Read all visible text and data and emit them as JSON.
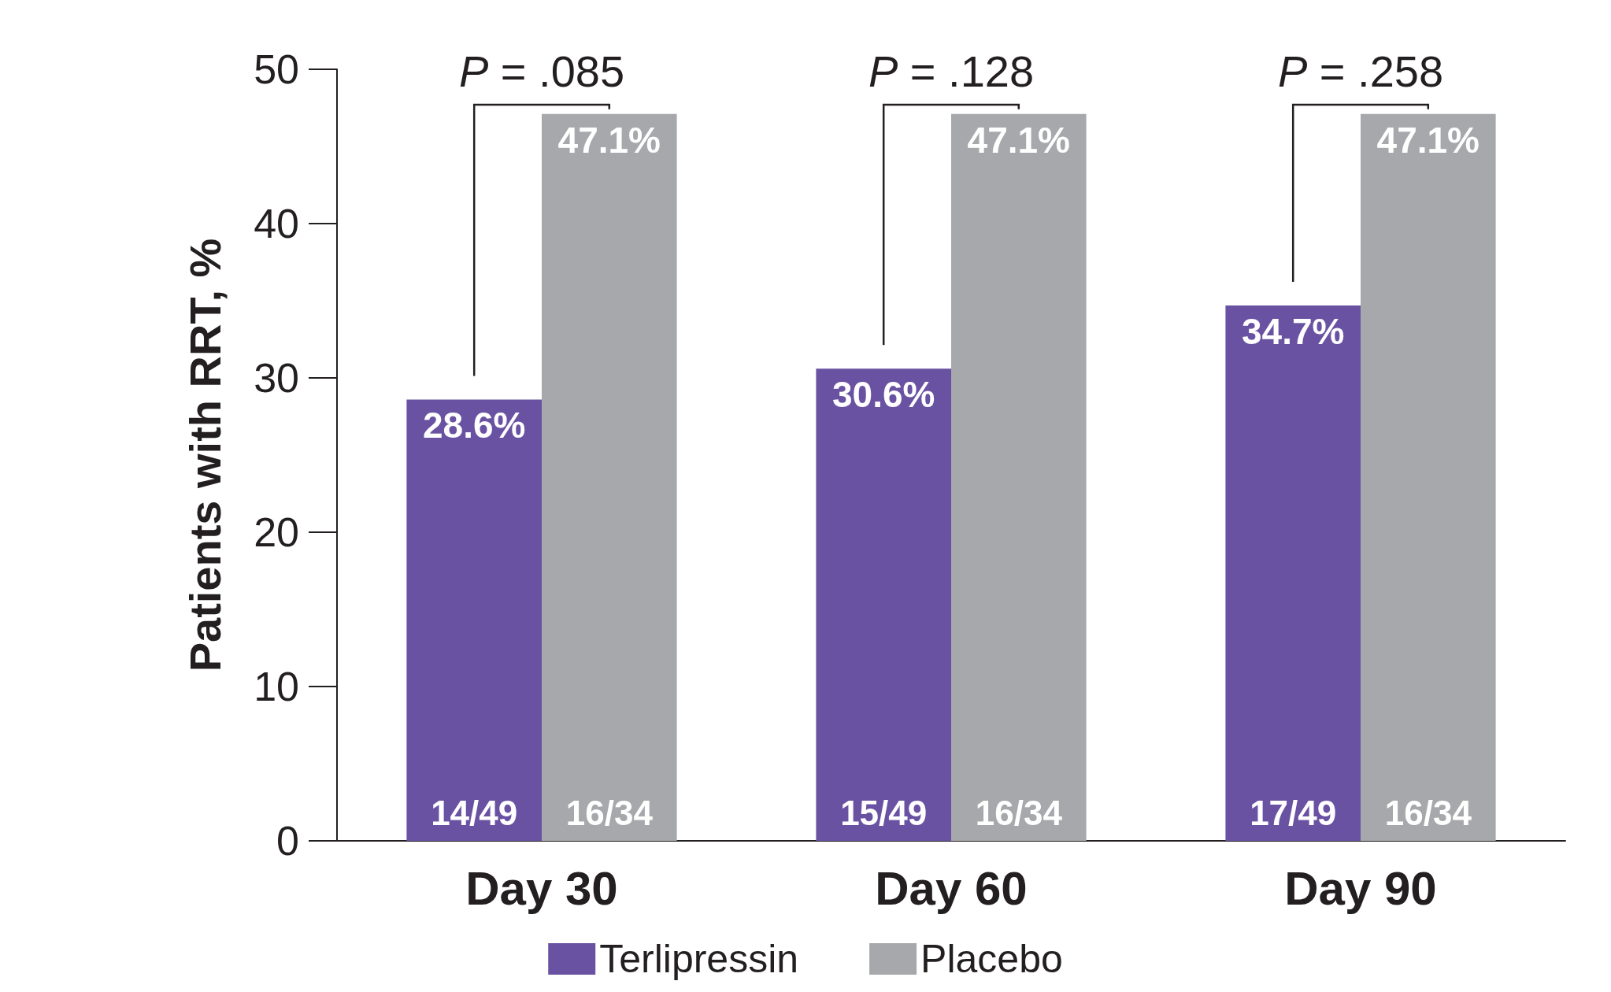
{
  "chart_data": {
    "type": "bar",
    "ylabel": "Patients with RRT, %",
    "categories": [
      "Day 30",
      "Day 60",
      "Day 90"
    ],
    "series": [
      {
        "name": "Terlipressin",
        "color": "#6a52a3",
        "values": [
          28.6,
          30.6,
          34.7
        ],
        "value_labels": [
          "28.6%",
          "30.6%",
          "34.7%"
        ]
      },
      {
        "name": "Placebo",
        "color": "#a7a8ab",
        "values": [
          47.1,
          47.1,
          47.1
        ],
        "value_labels": [
          "47.1%",
          "47.1%",
          "47.1%"
        ]
      }
    ],
    "ylim": [
      0,
      50
    ],
    "yticks": [
      0,
      10,
      20,
      30,
      40,
      50
    ],
    "grid": false,
    "legend": "bottom",
    "annotations": [
      "P = .085",
      "P = .128",
      "P = .258",
      {
        "text": "14/49",
        "x": "Day 30",
        "y": 0
      },
      {
        "text": "16/34",
        "x": "Day 30",
        "y": 0
      },
      {
        "text": "15/49",
        "x": "Day 60",
        "y": 0
      },
      {
        "text": "16/34",
        "x": "Day 60",
        "y": 0
      },
      {
        "text": "17/49",
        "x": "Day 90",
        "y": 0
      },
      {
        "text": "16/34",
        "x": "Day 90",
        "y": 0
      }
    ]
  }
}
